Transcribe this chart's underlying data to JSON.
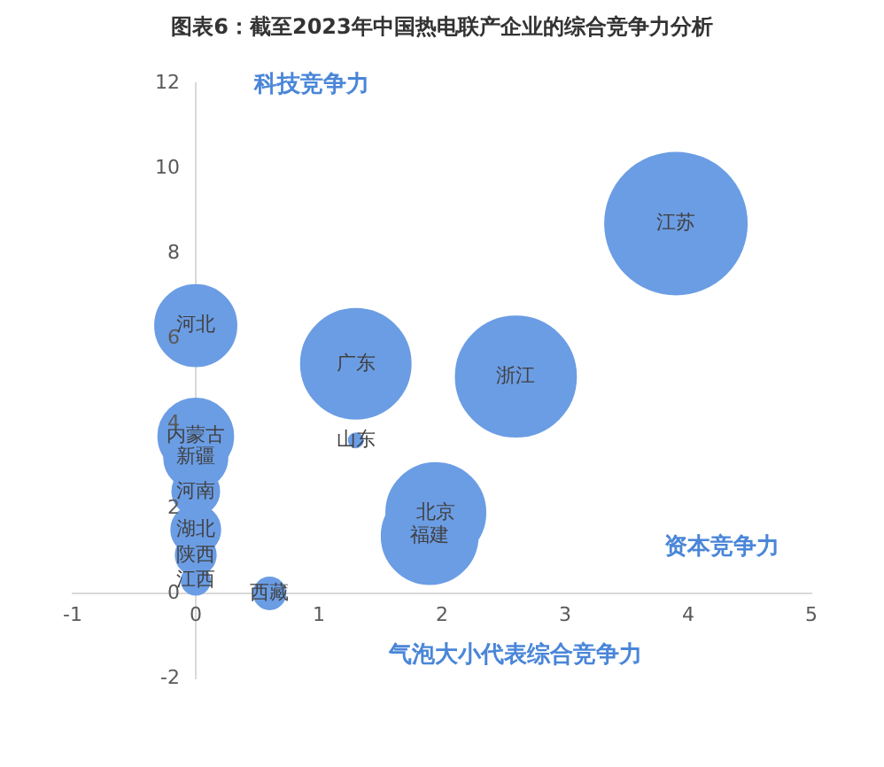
{
  "chart_data": {
    "type": "bubble",
    "title": "图表6：截至2023年中国热电联产企业的综合竞争力分析",
    "xlabel": "资本竞争力",
    "ylabel": "科技竞争力",
    "annotations": [
      "气泡大小代表综合竞争力"
    ],
    "xlim": [
      -1,
      5
    ],
    "ylim": [
      -2,
      12
    ],
    "xticks": [
      -1,
      0,
      1,
      2,
      3,
      4,
      5
    ],
    "yticks": [
      -2,
      0,
      2,
      4,
      6,
      8,
      10,
      12
    ],
    "series": [
      {
        "name": "江苏",
        "color": "#6b9de4",
        "x": [
          3.9
        ],
        "values": [
          8.7
        ],
        "sizes": [
          1
        ]
      },
      {
        "name": "浙江",
        "color": "#6b9de4",
        "x": [
          2.6
        ],
        "values": [
          5.1
        ],
        "sizes": [
          0.72
        ]
      },
      {
        "name": "广东",
        "color": "#6b9de4",
        "x": [
          1.3
        ],
        "values": [
          5.4
        ],
        "sizes": [
          0.6
        ]
      },
      {
        "name": "山东",
        "color": "#6b9de4",
        "x": [
          1.3
        ],
        "values": [
          3.6
        ],
        "sizes": [
          0.01
        ]
      },
      {
        "name": "北京",
        "color": "#6b9de4",
        "x": [
          1.95
        ],
        "values": [
          1.9
        ],
        "sizes": [
          0.49
        ]
      },
      {
        "name": "福建",
        "color": "#6b9de4",
        "x": [
          1.9
        ],
        "values": [
          1.35
        ],
        "sizes": [
          0.46
        ]
      },
      {
        "name": "河北",
        "color": "#6b9de4",
        "x": [
          0
        ],
        "values": [
          6.3
        ],
        "sizes": [
          0.33
        ]
      },
      {
        "name": "内蒙古",
        "color": "#6b9de4",
        "x": [
          0
        ],
        "values": [
          3.7
        ],
        "sizes": [
          0.28
        ]
      },
      {
        "name": "新疆",
        "color": "#6b9de4",
        "x": [
          0
        ],
        "values": [
          3.2
        ],
        "sizes": [
          0.2
        ]
      },
      {
        "name": "河南",
        "color": "#6b9de4",
        "x": [
          0
        ],
        "values": [
          2.4
        ],
        "sizes": [
          0.11
        ]
      },
      {
        "name": "湖北",
        "color": "#6b9de4",
        "x": [
          0
        ],
        "values": [
          1.5
        ],
        "sizes": [
          0.12
        ]
      },
      {
        "name": "陕西",
        "color": "#6b9de4",
        "x": [
          0
        ],
        "values": [
          0.9
        ],
        "sizes": [
          0.08
        ]
      },
      {
        "name": "江西",
        "color": "#6b9de4",
        "x": [
          0
        ],
        "values": [
          0.3
        ],
        "sizes": [
          0.04
        ]
      },
      {
        "name": "西藏",
        "color": "#6b9de4",
        "x": [
          0.6
        ],
        "values": [
          0
        ],
        "sizes": [
          0.05
        ]
      }
    ]
  }
}
